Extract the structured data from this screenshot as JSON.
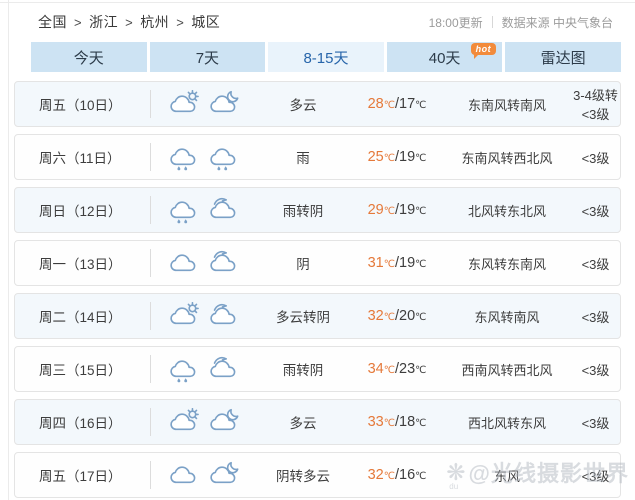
{
  "breadcrumb": {
    "items": [
      "全国",
      "浙江",
      "杭州",
      "城区"
    ],
    "separator": ">"
  },
  "header_meta": {
    "update_time": "18:00更新",
    "source": "数据来源 中央气象台"
  },
  "tabs": [
    {
      "key": "today",
      "label": "今天",
      "active": false
    },
    {
      "key": "7day",
      "label": "7天",
      "active": false
    },
    {
      "key": "8-15day",
      "label": "8-15天",
      "active": true
    },
    {
      "key": "40day",
      "label": "40天",
      "active": false,
      "badge": "hot"
    },
    {
      "key": "radar",
      "label": "雷达图",
      "active": false
    }
  ],
  "colors": {
    "tab_bg": "#cde3f3",
    "tab_active_bg": "#e9f3fb",
    "tab_active_text": "#2765aa",
    "high_temp": "#e5793a",
    "icon_stroke": "#7ba1c7",
    "row_tint": "#f3f8fc",
    "hot_badge": "#f28b3b"
  },
  "forecast": {
    "units": {
      "temp": "℃"
    },
    "temp_separator": "/",
    "rows": [
      {
        "day": "周五（10日）",
        "day_icon": "cloud-sun-icon",
        "night_icon": "cloud-moon-icon",
        "weather": "多云",
        "temp_high": "28",
        "temp_low": "17",
        "wind": "东南风转南风",
        "wind_level": "3-4级转<3级"
      },
      {
        "day": "周六（11日）",
        "day_icon": "rain-icon",
        "night_icon": "rain-icon",
        "weather": "雨",
        "temp_high": "25",
        "temp_low": "19",
        "wind": "东南风转西北风",
        "wind_level": "<3级"
      },
      {
        "day": "周日（12日）",
        "day_icon": "rain-icon",
        "night_icon": "overcast-icon",
        "weather": "雨转阴",
        "temp_high": "29",
        "temp_low": "19",
        "wind": "北风转东北风",
        "wind_level": "<3级"
      },
      {
        "day": "周一（13日）",
        "day_icon": "cloud-icon",
        "night_icon": "overcast-icon",
        "weather": "阴",
        "temp_high": "31",
        "temp_low": "19",
        "wind": "东风转东南风",
        "wind_level": "<3级"
      },
      {
        "day": "周二（14日）",
        "day_icon": "cloud-sun-icon",
        "night_icon": "overcast-icon",
        "weather": "多云转阴",
        "temp_high": "32",
        "temp_low": "20",
        "wind": "东风转南风",
        "wind_level": "<3级"
      },
      {
        "day": "周三（15日）",
        "day_icon": "rain-icon",
        "night_icon": "overcast-icon",
        "weather": "雨转阴",
        "temp_high": "34",
        "temp_low": "23",
        "wind": "西南风转西北风",
        "wind_level": "<3级"
      },
      {
        "day": "周四（16日）",
        "day_icon": "cloud-sun-icon",
        "night_icon": "cloud-moon-icon",
        "weather": "多云",
        "temp_high": "33",
        "temp_low": "18",
        "wind": "西北风转东风",
        "wind_level": "<3级"
      },
      {
        "day": "周五（17日）",
        "day_icon": "cloud-icon",
        "night_icon": "cloud-moon-icon",
        "weather": "阴转多云",
        "temp_high": "32",
        "temp_low": "16",
        "wind": "东风",
        "wind_level": "<3级"
      }
    ]
  },
  "watermark": {
    "logo": "❋",
    "sub": "du",
    "handle": "@光线摄影世界"
  }
}
